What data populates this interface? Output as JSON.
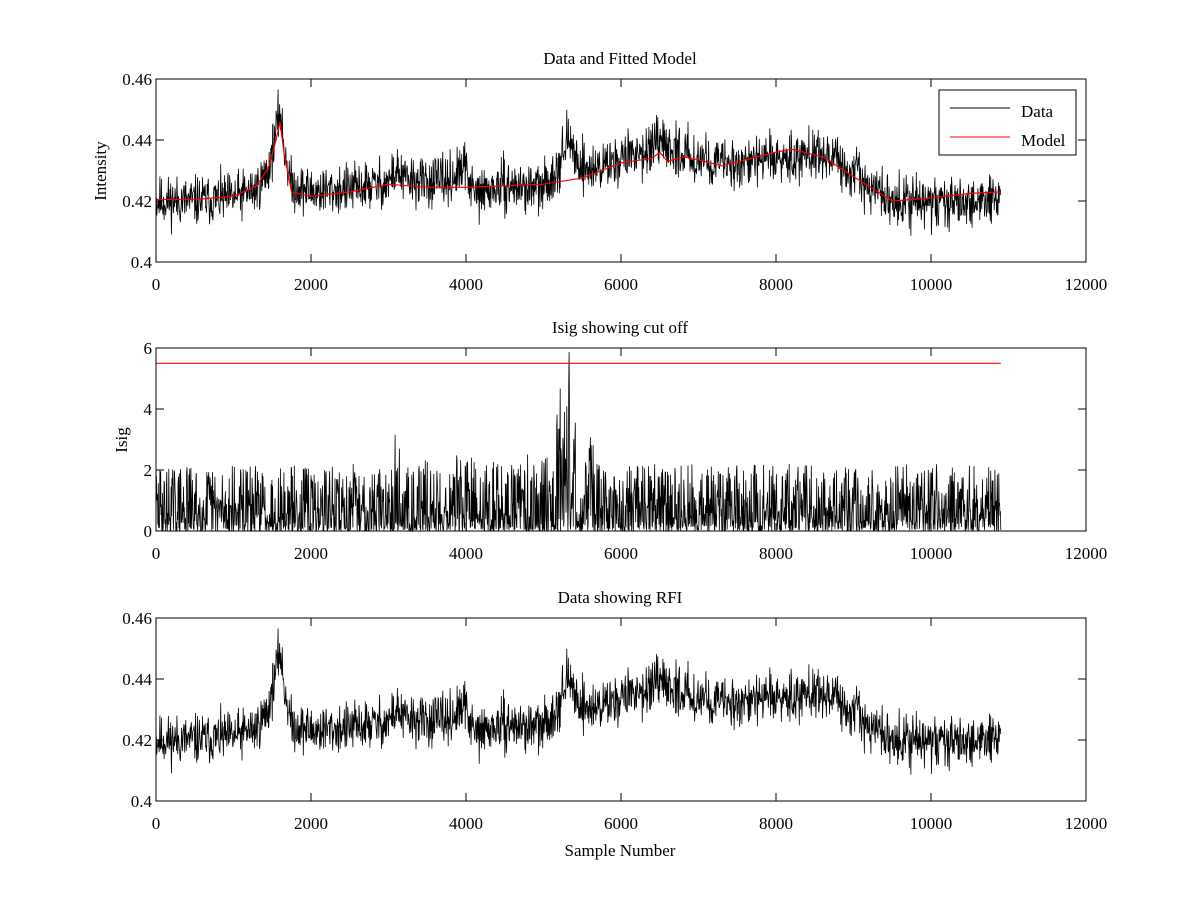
{
  "colors": {
    "data": "#000000",
    "model": "#ff0000",
    "background": "#ffffff"
  },
  "chart_data": [
    {
      "type": "line",
      "title": "Data and Fitted Model",
      "xlabel": "",
      "ylabel": "Intensity",
      "xlim": [
        0,
        12000
      ],
      "ylim": [
        0.4,
        0.46
      ],
      "xticks": [
        0,
        2000,
        4000,
        6000,
        8000,
        10000,
        12000
      ],
      "yticks": [
        0.4,
        0.42,
        0.44,
        0.46
      ],
      "ytick_labels": [
        "0.4",
        "0.42",
        "0.44",
        "0.46"
      ],
      "legend": {
        "position": "top-right",
        "entries": [
          "Data",
          "Model"
        ]
      },
      "series": [
        {
          "name": "Data",
          "color": "#000000",
          "noise": 0.004,
          "x": [
            0,
            500,
            1000,
            1300,
            1450,
            1550,
            1600,
            1650,
            1750,
            2000,
            2500,
            3000,
            3100,
            3200,
            3500,
            3800,
            4000,
            4100,
            4500,
            5000,
            5200,
            5300,
            5450,
            5600,
            6000,
            6200,
            6500,
            6800,
            7000,
            7300,
            8000,
            8200,
            8600,
            8800,
            9200,
            9500,
            10000,
            10500,
            10900
          ],
          "y": [
            0.42,
            0.42,
            0.421,
            0.424,
            0.43,
            0.443,
            0.45,
            0.438,
            0.425,
            0.423,
            0.424,
            0.426,
            0.43,
            0.427,
            0.426,
            0.427,
            0.431,
            0.422,
            0.425,
            0.424,
            0.432,
            0.44,
            0.433,
            0.43,
            0.434,
            0.436,
            0.438,
            0.436,
            0.434,
            0.432,
            0.434,
            0.435,
            0.436,
            0.432,
            0.425,
            0.42,
            0.419,
            0.42,
            0.421
          ]
        },
        {
          "name": "Model",
          "color": "#ff0000",
          "x": [
            0,
            500,
            1000,
            1300,
            1450,
            1550,
            1600,
            1650,
            1750,
            2000,
            2500,
            3000,
            3500,
            4000,
            4500,
            5000,
            5500,
            6000,
            6400,
            6500,
            6600,
            6800,
            7000,
            7300,
            8000,
            8200,
            8600,
            9000,
            9500,
            10000,
            10500,
            10900
          ],
          "y": [
            0.4205,
            0.4205,
            0.4215,
            0.425,
            0.431,
            0.44,
            0.446,
            0.436,
            0.423,
            0.4215,
            0.423,
            0.4255,
            0.4245,
            0.4245,
            0.425,
            0.4255,
            0.4275,
            0.4325,
            0.434,
            0.436,
            0.433,
            0.4345,
            0.4335,
            0.4315,
            0.436,
            0.437,
            0.4345,
            0.428,
            0.42,
            0.421,
            0.4225,
            0.423
          ]
        }
      ]
    },
    {
      "type": "line",
      "title": "Isig showing cut off",
      "xlabel": "",
      "ylabel": "Isig",
      "xlim": [
        0,
        12000
      ],
      "ylim": [
        0,
        6
      ],
      "xticks": [
        0,
        2000,
        4000,
        6000,
        8000,
        10000,
        12000
      ],
      "yticks": [
        0,
        2,
        4,
        6
      ],
      "ytick_labels": [
        "0",
        "2",
        "4",
        "6"
      ],
      "series": [
        {
          "name": "",
          "color": "#000000",
          "noise_mode": "abs",
          "x": [
            0,
            2950,
            3000,
            3050,
            3150,
            3200,
            4000,
            4150,
            4500,
            5000,
            5150,
            5250,
            5300,
            5400,
            5450,
            5600,
            5700,
            6000,
            7000,
            8000,
            9000,
            10000,
            10900
          ],
          "y": [
            1.0,
            1.0,
            1.4,
            1.8,
            1.3,
            1.0,
            1.2,
            1.0,
            1.1,
            1.2,
            1.8,
            3.0,
            3.6,
            2.0,
            0.3,
            1.8,
            1.0,
            1.0,
            1.0,
            1.0,
            1.0,
            1.0,
            1.0
          ]
        },
        {
          "name": "",
          "color": "#ff0000",
          "x": [
            0,
            10900
          ],
          "y": [
            5.5,
            5.5
          ]
        }
      ]
    },
    {
      "type": "line",
      "title": "Data showing RFI",
      "xlabel": "Sample Number",
      "ylabel": "",
      "xlim": [
        0,
        12000
      ],
      "ylim": [
        0.4,
        0.46
      ],
      "xticks": [
        0,
        2000,
        4000,
        6000,
        8000,
        10000,
        12000
      ],
      "yticks": [
        0.4,
        0.42,
        0.44,
        0.46
      ],
      "ytick_labels": [
        "0.4",
        "0.42",
        "0.44",
        "0.46"
      ],
      "series": [
        {
          "name": "",
          "color": "#000000",
          "noise": 0.004,
          "x": [
            0,
            500,
            1000,
            1300,
            1450,
            1550,
            1600,
            1650,
            1750,
            2000,
            2500,
            3000,
            3100,
            3200,
            3500,
            3800,
            4000,
            4100,
            4500,
            5000,
            5200,
            5300,
            5450,
            5600,
            6000,
            6200,
            6500,
            6800,
            7000,
            7300,
            8000,
            8200,
            8600,
            8800,
            9200,
            9500,
            10000,
            10500,
            10900
          ],
          "y": [
            0.42,
            0.42,
            0.421,
            0.424,
            0.43,
            0.443,
            0.45,
            0.438,
            0.425,
            0.423,
            0.424,
            0.426,
            0.43,
            0.427,
            0.426,
            0.427,
            0.431,
            0.422,
            0.425,
            0.424,
            0.432,
            0.44,
            0.433,
            0.43,
            0.434,
            0.436,
            0.438,
            0.436,
            0.434,
            0.432,
            0.434,
            0.435,
            0.436,
            0.432,
            0.425,
            0.42,
            0.419,
            0.42,
            0.421
          ]
        }
      ]
    }
  ]
}
